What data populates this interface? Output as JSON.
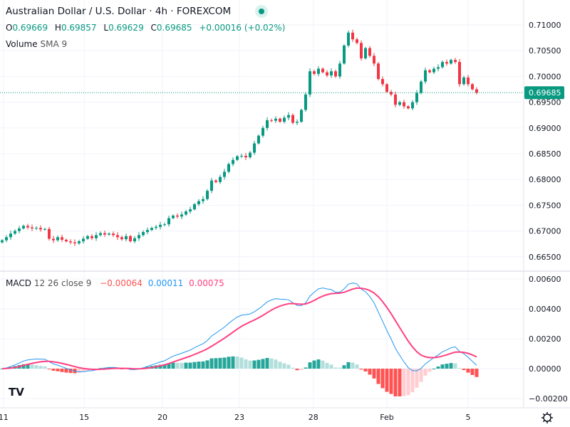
{
  "header": {
    "title": "Australian Dollar / U.S. Dollar · 4h · FOREXCOM",
    "ohlc": {
      "o_label": "O",
      "o": "0.69669",
      "h_label": "H",
      "h": "0.69857",
      "l_label": "L",
      "l": "0.69629",
      "c_label": "C",
      "c": "0.69685",
      "change": "+0.00016 (+0.02%)"
    },
    "volume_label": "Volume",
    "volume_sma": "SMA 9",
    "macd_label": "MACD",
    "macd_params": "12 26 close 9",
    "macd_hist": "−0.00064",
    "macd_line": "0.00011",
    "macd_signal": "0.00075"
  },
  "colors": {
    "up": "#089981",
    "down": "#f23645",
    "macd": "#2196f3",
    "signal": "#ff4081",
    "hist_up": "#26a69a",
    "hist_up_fade": "#b2dfdb",
    "hist_down": "#ff5252",
    "hist_down_fade": "#ffcdd2"
  },
  "chart_data": {
    "type": "candlestick",
    "title": "Australian Dollar / U.S. Dollar · 4h · FOREXCOM",
    "price_ticks": [
      "0.71000",
      "0.70500",
      "0.70000",
      "0.69500",
      "0.69000",
      "0.68500",
      "0.68000",
      "0.67500",
      "0.67000",
      "0.66500"
    ],
    "price_range": [
      0.665,
      0.71
    ],
    "last_price": "0.69685",
    "macd_ticks": [
      "0.00600",
      "0.00400",
      "0.00200",
      "0.00000",
      "−0.00200"
    ],
    "macd_range": [
      -0.002,
      0.006
    ],
    "time_ticks": [
      {
        "label": "11",
        "index": 0.3
      },
      {
        "label": "15",
        "index": 19.2
      },
      {
        "label": "20",
        "index": 37.5
      },
      {
        "label": "23",
        "index": 55.5
      },
      {
        "label": "28",
        "index": 72.8
      },
      {
        "label": "Feb",
        "index": 90
      },
      {
        "label": "5",
        "index": 109
      }
    ],
    "closes": [
      0.6682,
      0.6688,
      0.6695,
      0.67,
      0.6705,
      0.671,
      0.6707,
      0.6705,
      0.6706,
      0.6703,
      0.6704,
      0.6685,
      0.6682,
      0.6688,
      0.6683,
      0.668,
      0.6678,
      0.6676,
      0.668,
      0.6685,
      0.669,
      0.6686,
      0.6692,
      0.6696,
      0.6693,
      0.6695,
      0.6692,
      0.6688,
      0.6684,
      0.669,
      0.668,
      0.6686,
      0.6692,
      0.6698,
      0.6702,
      0.6706,
      0.6708,
      0.6712,
      0.6713,
      0.6725,
      0.673,
      0.6728,
      0.6732,
      0.6738,
      0.6742,
      0.6752,
      0.6758,
      0.6762,
      0.6778,
      0.6798,
      0.6795,
      0.6805,
      0.6815,
      0.683,
      0.6838,
      0.6845,
      0.6846,
      0.6843,
      0.6852,
      0.687,
      0.6885,
      0.69,
      0.6915,
      0.6914,
      0.6918,
      0.6912,
      0.692,
      0.6925,
      0.691,
      0.6912,
      0.6935,
      0.6965,
      0.701,
      0.7005,
      0.7015,
      0.7008,
      0.7002,
      0.701,
      0.7,
      0.7025,
      0.706,
      0.7085,
      0.7072,
      0.7065,
      0.7035,
      0.7055,
      0.704,
      0.7025,
      0.6995,
      0.6985,
      0.697,
      0.6965,
      0.6945,
      0.695,
      0.6942,
      0.6938,
      0.695,
      0.6968,
      0.699,
      0.7012,
      0.7008,
      0.7015,
      0.7018,
      0.7028,
      0.7025,
      0.7032,
      0.7028,
      0.6985,
      0.6998,
      0.6985,
      0.6975,
      0.69685
    ]
  }
}
